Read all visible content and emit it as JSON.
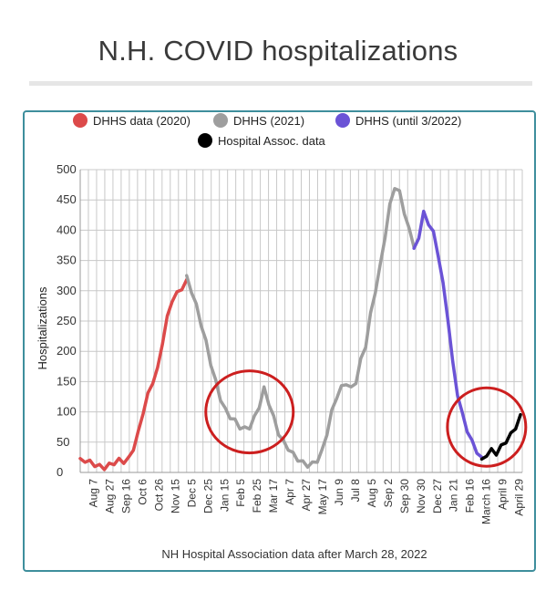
{
  "title": "N.H. COVID hospitalizations",
  "chart_data": {
    "type": "line",
    "ylabel": "Hospitalizations",
    "xlabel": "",
    "ylim": [
      0,
      500
    ],
    "yticks": [
      0,
      50,
      100,
      150,
      200,
      250,
      300,
      350,
      400,
      450,
      500
    ],
    "x_tick_labels": [
      "Aug 7",
      "Aug 27",
      "Sep 16",
      "Oct 6",
      "Oct 26",
      "Nov 15",
      "Dec 5",
      "Dec 25",
      "Jan 15",
      "Feb 5",
      "Feb 25",
      "Mar 17",
      "Apr 7",
      "Apr 27",
      "May 17",
      "Jun 9",
      "Jul 8",
      "Aug 5",
      "Sep 2",
      "Sep 30",
      "Nov 30",
      "Dec 27",
      "Jan 21",
      "Feb 16",
      "March 16",
      "April 9",
      "April 29"
    ],
    "grid": true,
    "legend_position": "top",
    "footnote": "NH Hospital Association data after March 28, 2022",
    "series": [
      {
        "name": "DHHS data (2020)",
        "color": "#dc4a4a",
        "points": [
          [
            0,
            23
          ],
          [
            0.5,
            20
          ],
          [
            1,
            17
          ],
          [
            1.5,
            13
          ],
          [
            2,
            10
          ],
          [
            2.5,
            8
          ],
          [
            3,
            12
          ],
          [
            3.5,
            16
          ],
          [
            4,
            20
          ],
          [
            4.5,
            18
          ],
          [
            5,
            22
          ],
          [
            5.5,
            40
          ],
          [
            6,
            65
          ],
          [
            6.5,
            100
          ],
          [
            7,
            128
          ],
          [
            7.5,
            150
          ],
          [
            8,
            170
          ],
          [
            8.5,
            215
          ],
          [
            9,
            255
          ],
          [
            9.5,
            285
          ],
          [
            10,
            295
          ],
          [
            10.5,
            305
          ],
          [
            11,
            315
          ]
        ]
      },
      {
        "name": "DHHS (2021)",
        "color": "#9e9e9e",
        "points": [
          [
            11,
            325
          ],
          [
            11.5,
            300
          ],
          [
            12,
            275
          ],
          [
            12.5,
            245
          ],
          [
            13,
            215
          ],
          [
            13.5,
            180
          ],
          [
            14,
            150
          ],
          [
            14.5,
            122
          ],
          [
            15,
            103
          ],
          [
            15.5,
            92
          ],
          [
            16,
            85
          ],
          [
            16.5,
            75
          ],
          [
            17,
            72
          ],
          [
            17.5,
            75
          ],
          [
            18,
            90
          ],
          [
            18.5,
            110
          ],
          [
            19,
            138
          ],
          [
            19.5,
            115
          ],
          [
            20,
            90
          ],
          [
            20.5,
            65
          ],
          [
            21,
            50
          ],
          [
            21.5,
            40
          ],
          [
            22,
            30
          ],
          [
            22.5,
            22
          ],
          [
            23,
            16
          ],
          [
            23.5,
            12
          ],
          [
            24,
            14
          ],
          [
            24.5,
            20
          ],
          [
            25,
            35
          ],
          [
            25.5,
            65
          ],
          [
            26,
            100
          ],
          [
            26.5,
            125
          ],
          [
            27,
            140
          ],
          [
            27.5,
            148
          ],
          [
            28,
            138
          ],
          [
            28.5,
            150
          ],
          [
            29,
            185
          ],
          [
            29.5,
            210
          ],
          [
            30,
            260
          ],
          [
            30.5,
            300
          ],
          [
            31,
            340
          ],
          [
            31.5,
            390
          ],
          [
            32,
            440
          ],
          [
            32.5,
            472
          ],
          [
            33,
            462
          ],
          [
            33.5,
            430
          ],
          [
            34,
            400
          ],
          [
            34.5,
            375
          ]
        ]
      },
      {
        "name": "DHHS (until 3/2022)",
        "color": "#6b53d6",
        "points": [
          [
            34.5,
            370
          ],
          [
            35,
            390
          ],
          [
            35.5,
            428
          ],
          [
            36,
            412
          ],
          [
            36.5,
            395
          ],
          [
            37,
            360
          ],
          [
            37.5,
            310
          ],
          [
            38,
            255
          ],
          [
            38.5,
            180
          ],
          [
            39,
            130
          ],
          [
            39.5,
            95
          ],
          [
            40,
            70
          ],
          [
            40.5,
            50
          ],
          [
            41,
            35
          ],
          [
            41.5,
            22
          ]
        ]
      },
      {
        "name": "Hospital Assoc. data",
        "color": "#000000",
        "points": [
          [
            41.5,
            22
          ],
          [
            42,
            30
          ],
          [
            42.5,
            36
          ],
          [
            43,
            32
          ],
          [
            43.5,
            42
          ],
          [
            44,
            52
          ],
          [
            44.5,
            62
          ],
          [
            45,
            75
          ],
          [
            45.5,
            92
          ]
        ]
      }
    ],
    "annotations": [
      {
        "shape": "circle",
        "color": "#cc1f1f",
        "x": 17.5,
        "y": 100
      },
      {
        "shape": "circle",
        "color": "#cc1f1f",
        "x": 42,
        "y": 75
      }
    ]
  }
}
